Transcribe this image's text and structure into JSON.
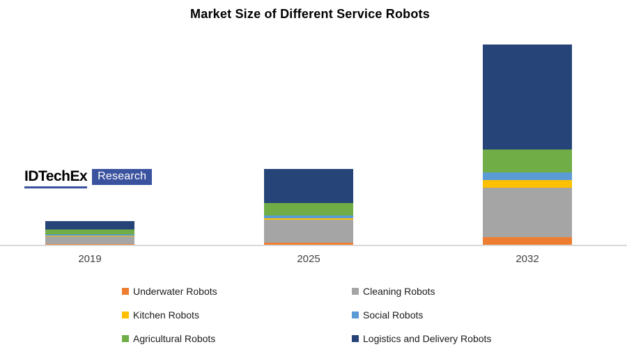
{
  "title": "Market Size of Different Service Robots",
  "logo": {
    "brand": "IDTechEx",
    "tag": "Research"
  },
  "colors": {
    "axis_line": "#d9d9d9",
    "logo_blue": "#3b539f",
    "title_text": "#000000",
    "tick_text": "#404040"
  },
  "chart_data": {
    "type": "bar",
    "stacked": true,
    "title": "Market Size of Different Service Robots",
    "xlabel": "",
    "ylabel": "",
    "grid": false,
    "legend_position": "bottom",
    "value_unit": "relative height (no numeric axis shown in chart)",
    "categories": [
      "2019",
      "2025",
      "2032"
    ],
    "series": [
      {
        "name": "Underwater Robots",
        "color": "#ED7D31",
        "values": [
          1,
          3,
          11
        ]
      },
      {
        "name": "Cleaning Robots",
        "color": "#A5A5A5",
        "values": [
          11,
          33,
          71
        ]
      },
      {
        "name": "Kitchen Robots",
        "color": "#FFC000",
        "values": [
          1,
          2,
          11
        ]
      },
      {
        "name": "Social Robots",
        "color": "#5B9BD5",
        "values": [
          2,
          4,
          11
        ]
      },
      {
        "name": "Agricultural Robots",
        "color": "#70AD47",
        "values": [
          7,
          18,
          33
        ]
      },
      {
        "name": "Logistics and Delivery Robots",
        "color": "#264478",
        "values": [
          12,
          49,
          151
        ]
      }
    ],
    "totals": [
      34,
      109,
      288
    ]
  }
}
